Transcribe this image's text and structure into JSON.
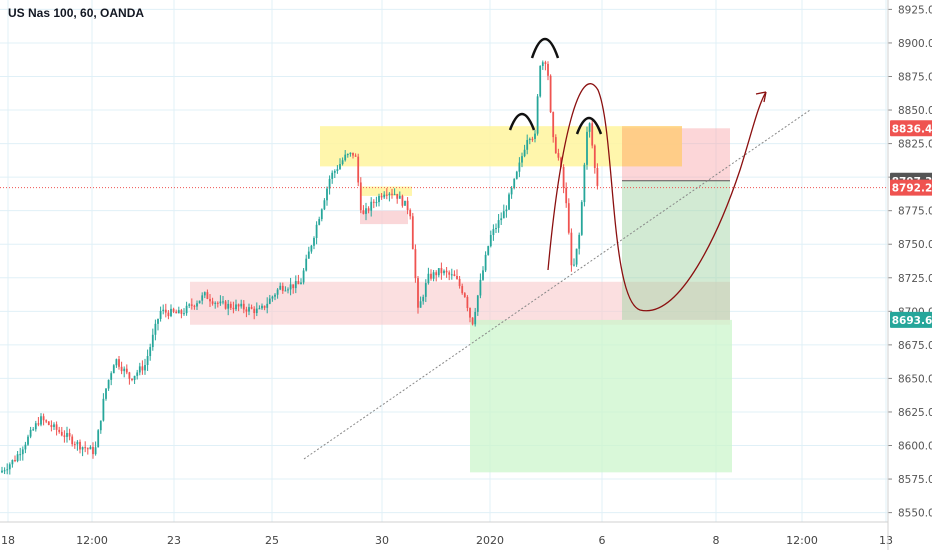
{
  "chart_data": {
    "type": "candlestick",
    "title": "US Nas 100, 60, OANDA",
    "x_tick_labels": [
      "18",
      "12:00",
      "23",
      "25",
      "30",
      "2020",
      "6",
      "8",
      "12:00",
      "13"
    ],
    "y_ticks": [
      "8925.0",
      "8900.0",
      "8875.0",
      "8850.0",
      "8825.0",
      "8800.0",
      "8775.0",
      "8750.0",
      "8725.0",
      "8700.0",
      "8675.0",
      "8650.0",
      "8625.0",
      "8600.0",
      "8575.0",
      "8550.0"
    ],
    "y_range": [
      8543,
      8932
    ],
    "price_labels": [
      {
        "text": "8836.4",
        "value": 8836.4,
        "color": "#ef5350"
      },
      {
        "text": "8797.3",
        "value": 8797.3,
        "color": "#555555"
      },
      {
        "text": "8792.2",
        "value": 8792.2,
        "color": "#ef5350"
      },
      {
        "text": "8693.6",
        "value": 8693.6,
        "color": "#26a69a"
      }
    ],
    "current_price": 8792.2,
    "candle_keypoints": [
      [
        0,
        8580
      ],
      [
        15,
        8590
      ],
      [
        40,
        8620
      ],
      [
        60,
        8610
      ],
      [
        80,
        8600
      ],
      [
        95,
        8595
      ],
      [
        105,
        8640
      ],
      [
        115,
        8665
      ],
      [
        130,
        8650
      ],
      [
        145,
        8660
      ],
      [
        160,
        8700
      ],
      [
        180,
        8698
      ],
      [
        205,
        8712
      ],
      [
        220,
        8705
      ],
      [
        240,
        8703
      ],
      [
        260,
        8700
      ],
      [
        280,
        8718
      ],
      [
        300,
        8720
      ],
      [
        315,
        8760
      ],
      [
        330,
        8800
      ],
      [
        345,
        8815
      ],
      [
        355,
        8818
      ],
      [
        362,
        8770
      ],
      [
        372,
        8780
      ],
      [
        385,
        8790
      ],
      [
        395,
        8788
      ],
      [
        410,
        8775
      ],
      [
        418,
        8700
      ],
      [
        428,
        8725
      ],
      [
        440,
        8730
      ],
      [
        455,
        8725
      ],
      [
        465,
        8712
      ],
      [
        472,
        8690
      ],
      [
        480,
        8720
      ],
      [
        490,
        8755
      ],
      [
        505,
        8775
      ],
      [
        518,
        8805
      ],
      [
        528,
        8832
      ],
      [
        535,
        8830
      ],
      [
        540,
        8885
      ],
      [
        547,
        8888
      ],
      [
        552,
        8830
      ],
      [
        560,
        8810
      ],
      [
        568,
        8770
      ],
      [
        572,
        8725
      ],
      [
        580,
        8760
      ],
      [
        586,
        8830
      ],
      [
        590,
        8840
      ],
      [
        594,
        8810
      ],
      [
        598,
        8792
      ]
    ],
    "zones": [
      {
        "kind": "resistance-yellow",
        "from": 8808,
        "to": 8838
      },
      {
        "kind": "small-yellow",
        "from": 8786,
        "to": 8793
      },
      {
        "kind": "support-pink",
        "from": 8690,
        "to": 8722
      },
      {
        "kind": "small-pink",
        "from": 8765,
        "to": 8775
      }
    ],
    "position": {
      "entry": 8797.3,
      "stop": 8836.4,
      "target": 8693.6
    },
    "grid": true
  },
  "colors": {
    "up": "#26a69a",
    "down": "#ef5350",
    "grid": "#e0f0f7",
    "axis_text": "#555555"
  }
}
